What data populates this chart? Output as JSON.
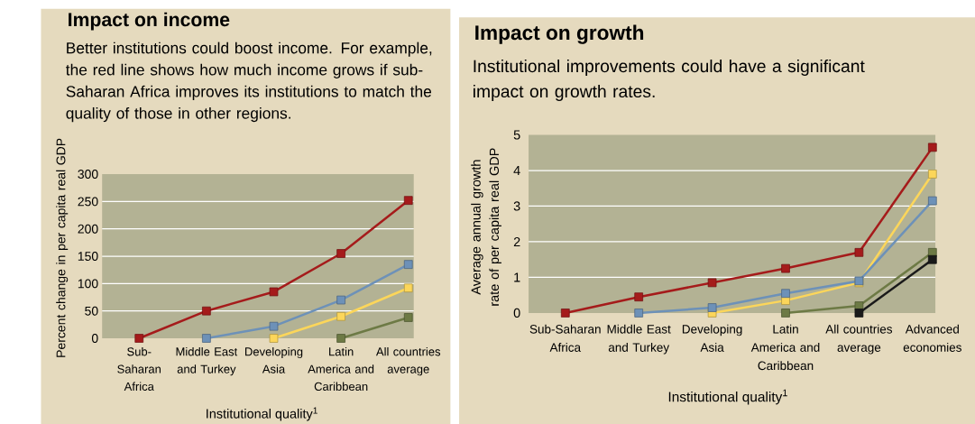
{
  "chart_data": [
    {
      "type": "line",
      "title": "Impact on income",
      "subtitle": "Better institutions could boost income. For example, the red line shows how much income grows if sub-Saharan Africa improves its institutions to match the quality of those in other regions.",
      "xlabel": "Institutional quality$^{1}$",
      "ylabel": "Percent change in per capita real GDP",
      "categories": [
        "Sub-Saharan Africa",
        "Middle East and Turkey",
        "Developing Asia",
        "Latin America and Caribbean",
        "All countries average"
      ],
      "series": [
        {
          "color": "#6d7a45",
          "values": [
            null,
            null,
            null,
            0,
            38
          ]
        },
        {
          "color": "#fcd65a",
          "values": [
            null,
            null,
            0,
            40,
            92
          ]
        },
        {
          "color": "#6d91b8",
          "values": [
            null,
            0,
            22,
            70,
            135
          ]
        },
        {
          "color": "#a51b1b",
          "values": [
            0,
            50,
            85,
            155,
            252
          ]
        }
      ],
      "ylim": [
        0,
        300
      ],
      "yticks": [
        0,
        50,
        100,
        150,
        200,
        250,
        300
      ],
      "grid": "y",
      "marker": "square",
      "line_style": "solid"
    },
    {
      "type": "line",
      "title": "Impact on growth",
      "subtitle": "Institutional improvements could have a significant impact on growth rates.",
      "xlabel": "Institutional quality$^{1}$",
      "ylabel": "Average annual growth rate of per capita real GDP",
      "categories": [
        "Sub-Saharan Africa",
        "Middle East and Turkey",
        "Developing Asia",
        "Latin America and Caribbean",
        "All countries average",
        "Advanced economies"
      ],
      "series": [
        {
          "color": "#6d7a45",
          "values": [
            null,
            null,
            null,
            0,
            0.2,
            1.7
          ]
        },
        {
          "color": "#1a1a1a",
          "values": [
            null,
            null,
            null,
            null,
            0,
            1.5
          ]
        },
        {
          "color": "#fcd65a",
          "values": [
            null,
            null,
            0,
            0.35,
            0.85,
            3.9
          ]
        },
        {
          "color": "#6d91b8",
          "values": [
            null,
            0,
            0.15,
            0.55,
            0.9,
            3.15
          ]
        },
        {
          "color": "#a51b1b",
          "values": [
            0,
            0.45,
            0.85,
            1.25,
            1.7,
            4.65
          ]
        }
      ],
      "ylim": [
        0,
        5
      ],
      "yticks": [
        0,
        1,
        2,
        3,
        4,
        5
      ],
      "grid": "y",
      "marker": "square",
      "line_style": "solid"
    }
  ]
}
